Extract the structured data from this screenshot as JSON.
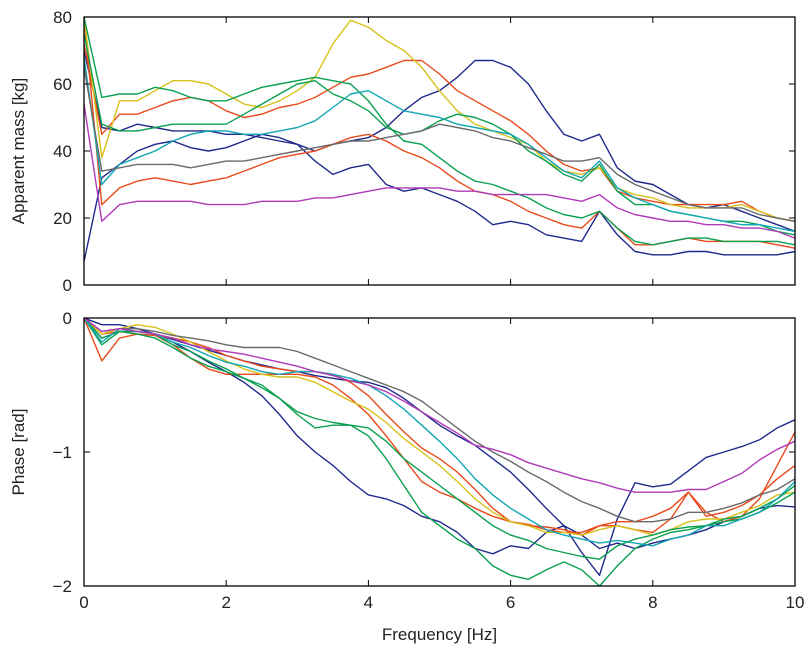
{
  "chart_data": [
    {
      "type": "line",
      "xlabel": "",
      "ylabel": "Apparent mass [kg]",
      "xlim": [
        0,
        10
      ],
      "ylim": [
        0,
        80
      ],
      "xticks": [
        0,
        2,
        4,
        6,
        8,
        10
      ],
      "yticks": [
        0,
        20,
        40,
        60,
        80
      ],
      "x": [
        0,
        0.25,
        0.5,
        0.75,
        1,
        1.25,
        1.5,
        1.75,
        2,
        2.25,
        2.5,
        2.75,
        3,
        3.25,
        3.5,
        3.75,
        4,
        4.25,
        4.5,
        4.75,
        5,
        5.25,
        5.5,
        5.75,
        6,
        6.25,
        6.5,
        6.75,
        7,
        7.25,
        7.5,
        7.75,
        8,
        8.25,
        8.5,
        8.75,
        9,
        9.25,
        9.5,
        9.75,
        10
      ],
      "series": [
        {
          "color": "#1f2a8c",
          "values": [
            7,
            32,
            36,
            40,
            42,
            43,
            41,
            40,
            41,
            43,
            45,
            44,
            42,
            40,
            42,
            43,
            44,
            47,
            52,
            56,
            58,
            62,
            67,
            67,
            65,
            60,
            52,
            45,
            43,
            45,
            35,
            31,
            30,
            27,
            24,
            23,
            24,
            22,
            20,
            18,
            16
          ]
        },
        {
          "color": "#1f2a8c",
          "values": [
            70,
            47,
            46,
            48,
            47,
            46,
            46,
            46,
            45,
            45,
            44,
            43,
            42,
            37,
            33,
            35,
            36,
            30,
            28,
            29,
            27,
            25,
            22,
            18,
            19,
            18,
            15,
            14,
            13,
            22,
            15,
            10,
            9,
            9,
            10,
            10,
            9,
            9,
            9,
            9,
            10
          ]
        },
        {
          "color": "#e84a1b",
          "values": [
            72,
            45,
            51,
            51,
            53,
            55,
            56,
            55,
            52,
            50,
            51,
            53,
            54,
            56,
            59,
            62,
            63,
            65,
            67,
            67,
            63,
            58,
            55,
            52,
            49,
            45,
            40,
            36,
            34,
            35,
            28,
            26,
            25,
            24,
            24,
            24,
            24,
            25,
            22,
            20,
            19
          ]
        },
        {
          "color": "#e84a1b",
          "values": [
            80,
            24,
            29,
            31,
            32,
            31,
            30,
            31,
            32,
            34,
            36,
            38,
            39,
            40,
            42,
            44,
            45,
            43,
            40,
            38,
            35,
            31,
            28,
            27,
            25,
            22,
            20,
            18,
            17,
            22,
            17,
            12,
            12,
            13,
            14,
            13,
            13,
            13,
            13,
            12,
            11
          ]
        },
        {
          "color": "#d8c01a",
          "values": [
            80,
            38,
            55,
            55,
            58,
            61,
            61,
            60,
            57,
            54,
            53,
            55,
            58,
            62,
            72,
            79,
            77,
            73,
            70,
            65,
            58,
            52,
            48,
            46,
            44,
            42,
            37,
            34,
            33,
            35,
            29,
            27,
            26,
            24,
            23,
            23,
            23,
            24,
            22,
            20,
            19
          ]
        },
        {
          "color": "#0aa050",
          "values": [
            80,
            56,
            57,
            57,
            59,
            58,
            56,
            55,
            55,
            57,
            59,
            60,
            61,
            62,
            61,
            60,
            55,
            48,
            43,
            42,
            38,
            34,
            31,
            30,
            28,
            26,
            23,
            21,
            20,
            22,
            17,
            13,
            12,
            13,
            14,
            14,
            13,
            13,
            13,
            13,
            12
          ]
        },
        {
          "color": "#0aa050",
          "values": [
            75,
            48,
            46,
            46,
            47,
            48,
            48,
            48,
            48,
            51,
            54,
            57,
            60,
            61,
            57,
            55,
            52,
            47,
            45,
            46,
            49,
            51,
            50,
            48,
            45,
            40,
            37,
            33,
            31,
            36,
            28,
            24,
            24,
            22,
            21,
            20,
            19,
            19,
            18,
            16,
            15
          ]
        },
        {
          "color": "#12a6b4",
          "values": [
            68,
            30,
            36,
            38,
            40,
            43,
            45,
            46,
            46,
            45,
            45,
            46,
            47,
            49,
            53,
            57,
            58,
            55,
            52,
            51,
            50,
            48,
            47,
            46,
            45,
            42,
            38,
            34,
            32,
            37,
            29,
            26,
            24,
            22,
            21,
            20,
            19,
            18,
            18,
            17,
            16
          ]
        },
        {
          "color": "#6a6a6a",
          "values": [
            65,
            34,
            35,
            36,
            36,
            36,
            35,
            36,
            37,
            37,
            38,
            39,
            40,
            41,
            42,
            43,
            43,
            44,
            45,
            46,
            48,
            47,
            46,
            44,
            43,
            41,
            39,
            37,
            37,
            38,
            33,
            30,
            28,
            26,
            24,
            23,
            23,
            23,
            21,
            20,
            19
          ]
        },
        {
          "color": "#b03ab8",
          "values": [
            54,
            19,
            24,
            25,
            25,
            25,
            25,
            24,
            24,
            24,
            25,
            25,
            25,
            26,
            26,
            27,
            28,
            29,
            29,
            29,
            29,
            28,
            28,
            27,
            27,
            27,
            27,
            26,
            25,
            27,
            23,
            21,
            20,
            19,
            19,
            18,
            18,
            17,
            17,
            16,
            14
          ]
        }
      ]
    },
    {
      "type": "line",
      "xlabel": "Frequency [Hz]",
      "ylabel": "Phase [rad]",
      "xlim": [
        0,
        10
      ],
      "ylim": [
        -2,
        0
      ],
      "xticks": [
        0,
        2,
        4,
        6,
        8,
        10
      ],
      "yticks": [
        -2,
        -1,
        0
      ],
      "x": [
        0,
        0.25,
        0.5,
        0.75,
        1,
        1.25,
        1.5,
        1.75,
        2,
        2.25,
        2.5,
        2.75,
        3,
        3.25,
        3.5,
        3.75,
        4,
        4.25,
        4.5,
        4.75,
        5,
        5.25,
        5.5,
        5.75,
        6,
        6.25,
        6.5,
        6.75,
        7,
        7.25,
        7.5,
        7.75,
        8,
        8.25,
        8.5,
        8.75,
        9,
        9.25,
        9.5,
        9.75,
        10
      ],
      "series": [
        {
          "color": "#1f2a8c",
          "values": [
            0,
            -0.05,
            -0.05,
            -0.08,
            -0.12,
            -0.16,
            -0.2,
            -0.24,
            -0.28,
            -0.32,
            -0.35,
            -0.38,
            -0.4,
            -0.43,
            -0.45,
            -0.47,
            -0.48,
            -0.52,
            -0.6,
            -0.7,
            -0.8,
            -0.88,
            -0.95,
            -1.05,
            -1.15,
            -1.28,
            -1.42,
            -1.55,
            -1.75,
            -1.92,
            -1.5,
            -1.23,
            -1.26,
            -1.24,
            -1.14,
            -1.04,
            -1.0,
            -0.96,
            -0.91,
            -0.82,
            -0.76
          ]
        },
        {
          "color": "#1f2a8c",
          "values": [
            0,
            -0.15,
            -0.1,
            -0.1,
            -0.12,
            -0.18,
            -0.25,
            -0.33,
            -0.4,
            -0.48,
            -0.58,
            -0.72,
            -0.88,
            -1.0,
            -1.1,
            -1.22,
            -1.32,
            -1.35,
            -1.4,
            -1.48,
            -1.52,
            -1.6,
            -1.72,
            -1.76,
            -1.7,
            -1.72,
            -1.6,
            -1.55,
            -1.62,
            -1.72,
            -1.68,
            -1.72,
            -1.68,
            -1.65,
            -1.62,
            -1.58,
            -1.52,
            -1.48,
            -1.42,
            -1.4,
            -1.41
          ]
        },
        {
          "color": "#e84a1b",
          "values": [
            0,
            -0.32,
            -0.15,
            -0.12,
            -0.13,
            -0.2,
            -0.3,
            -0.38,
            -0.42,
            -0.42,
            -0.42,
            -0.42,
            -0.42,
            -0.44,
            -0.5,
            -0.6,
            -0.72,
            -0.88,
            -1.05,
            -1.22,
            -1.3,
            -1.35,
            -1.42,
            -1.48,
            -1.52,
            -1.54,
            -1.58,
            -1.6,
            -1.6,
            -1.55,
            -1.52,
            -1.52,
            -1.48,
            -1.42,
            -1.3,
            -1.45,
            -1.52,
            -1.48,
            -1.35,
            -1.1,
            -0.85
          ]
        },
        {
          "color": "#e84a1b",
          "values": [
            0,
            -0.12,
            -0.1,
            -0.12,
            -0.13,
            -0.15,
            -0.18,
            -0.22,
            -0.28,
            -0.32,
            -0.36,
            -0.38,
            -0.4,
            -0.4,
            -0.42,
            -0.48,
            -0.58,
            -0.72,
            -0.85,
            -0.97,
            -1.05,
            -1.15,
            -1.28,
            -1.42,
            -1.52,
            -1.55,
            -1.56,
            -1.58,
            -1.62,
            -1.55,
            -1.55,
            -1.58,
            -1.6,
            -1.5,
            -1.3,
            -1.48,
            -1.45,
            -1.4,
            -1.32,
            -1.2,
            -1.1
          ]
        },
        {
          "color": "#d8c01a",
          "values": [
            0,
            -0.12,
            -0.08,
            -0.05,
            -0.07,
            -0.12,
            -0.18,
            -0.25,
            -0.32,
            -0.38,
            -0.42,
            -0.44,
            -0.44,
            -0.48,
            -0.55,
            -0.62,
            -0.68,
            -0.78,
            -0.9,
            -1.0,
            -1.1,
            -1.22,
            -1.35,
            -1.45,
            -1.52,
            -1.55,
            -1.6,
            -1.6,
            -1.62,
            -1.58,
            -1.55,
            -1.58,
            -1.62,
            -1.58,
            -1.52,
            -1.5,
            -1.5,
            -1.45,
            -1.4,
            -1.32,
            -1.3
          ]
        },
        {
          "color": "#0aa050",
          "values": [
            0,
            -0.2,
            -0.1,
            -0.12,
            -0.15,
            -0.22,
            -0.3,
            -0.36,
            -0.4,
            -0.45,
            -0.5,
            -0.6,
            -0.72,
            -0.82,
            -0.8,
            -0.8,
            -0.88,
            -1.05,
            -1.25,
            -1.45,
            -1.55,
            -1.65,
            -1.72,
            -1.85,
            -1.92,
            -1.95,
            -1.88,
            -1.82,
            -1.88,
            -2.0,
            -1.85,
            -1.72,
            -1.65,
            -1.6,
            -1.58,
            -1.55,
            -1.5,
            -1.48,
            -1.42,
            -1.35,
            -1.25
          ]
        },
        {
          "color": "#0aa050",
          "values": [
            0,
            -0.15,
            -0.1,
            -0.1,
            -0.12,
            -0.2,
            -0.25,
            -0.32,
            -0.38,
            -0.45,
            -0.52,
            -0.6,
            -0.7,
            -0.75,
            -0.78,
            -0.8,
            -0.82,
            -0.92,
            -1.05,
            -1.15,
            -1.25,
            -1.35,
            -1.45,
            -1.55,
            -1.62,
            -1.66,
            -1.72,
            -1.75,
            -1.78,
            -1.8,
            -1.7,
            -1.65,
            -1.62,
            -1.58,
            -1.56,
            -1.55,
            -1.52,
            -1.5,
            -1.45,
            -1.38,
            -1.3
          ]
        },
        {
          "color": "#12a6b4",
          "values": [
            0,
            -0.18,
            -0.08,
            -0.1,
            -0.12,
            -0.18,
            -0.22,
            -0.28,
            -0.33,
            -0.36,
            -0.4,
            -0.42,
            -0.4,
            -0.4,
            -0.42,
            -0.45,
            -0.5,
            -0.58,
            -0.68,
            -0.8,
            -0.92,
            -1.05,
            -1.2,
            -1.32,
            -1.42,
            -1.5,
            -1.58,
            -1.62,
            -1.65,
            -1.68,
            -1.66,
            -1.68,
            -1.7,
            -1.65,
            -1.62,
            -1.55,
            -1.55,
            -1.5,
            -1.45,
            -1.35,
            -1.22
          ]
        },
        {
          "color": "#6a6a6a",
          "values": [
            0,
            -0.1,
            -0.08,
            -0.08,
            -0.1,
            -0.13,
            -0.15,
            -0.17,
            -0.2,
            -0.22,
            -0.22,
            -0.22,
            -0.25,
            -0.3,
            -0.35,
            -0.4,
            -0.45,
            -0.5,
            -0.55,
            -0.62,
            -0.72,
            -0.82,
            -0.92,
            -1.0,
            -1.07,
            -1.15,
            -1.22,
            -1.3,
            -1.37,
            -1.42,
            -1.48,
            -1.52,
            -1.52,
            -1.5,
            -1.45,
            -1.45,
            -1.42,
            -1.38,
            -1.32,
            -1.28,
            -1.2
          ]
        },
        {
          "color": "#b03ab8",
          "values": [
            0,
            -0.1,
            -0.08,
            -0.1,
            -0.12,
            -0.15,
            -0.2,
            -0.23,
            -0.25,
            -0.27,
            -0.3,
            -0.33,
            -0.36,
            -0.4,
            -0.43,
            -0.47,
            -0.5,
            -0.55,
            -0.62,
            -0.7,
            -0.78,
            -0.86,
            -0.95,
            -0.98,
            -1.02,
            -1.08,
            -1.12,
            -1.16,
            -1.2,
            -1.23,
            -1.27,
            -1.3,
            -1.3,
            -1.3,
            -1.28,
            -1.28,
            -1.22,
            -1.16,
            -1.06,
            -0.98,
            -0.92
          ]
        }
      ]
    }
  ]
}
